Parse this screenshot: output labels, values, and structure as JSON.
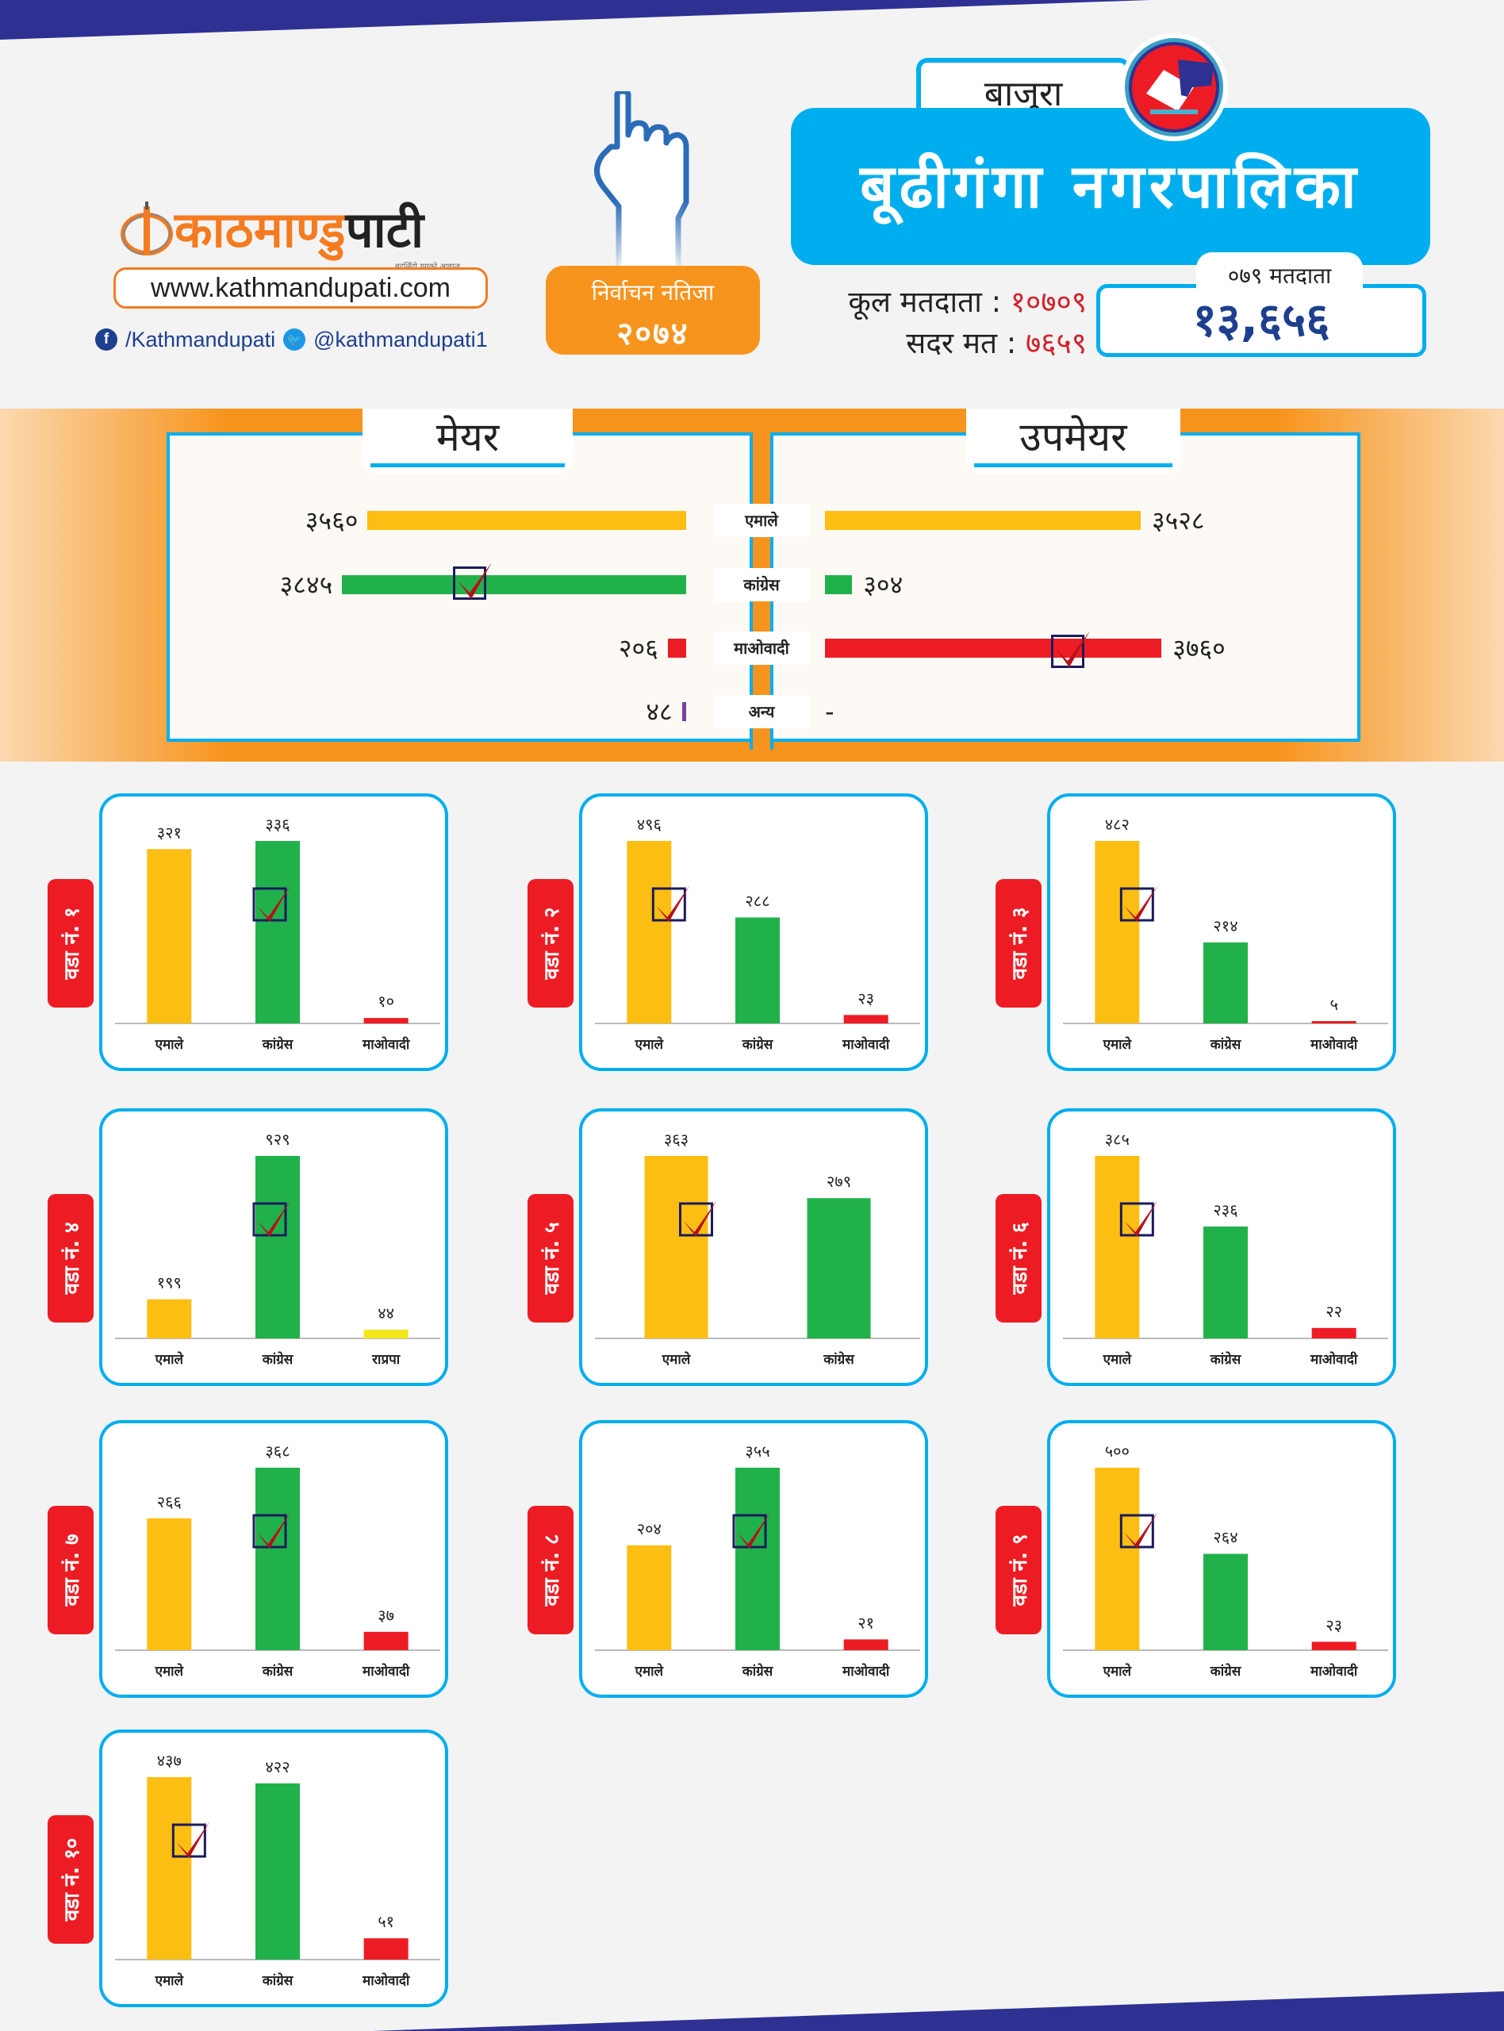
{
  "brand": {
    "logo_orange": "काठमाण्डु",
    "logo_dark": "पाटी",
    "tagline": "बदलिँदो युगको आवाज",
    "website": "www.kathmandupati.com",
    "facebook": "/Kathmandupati",
    "twitter": "@kathmandupati1"
  },
  "badge": {
    "line1": "निर्वाचन नतिजा",
    "line2": "२०७४"
  },
  "header": {
    "district": "बाजुरा",
    "municipality": "बूढीगंगा नगरपालिका",
    "total_voters_label": "कूल मतदाता :",
    "total_voters_value": "१०७०९",
    "valid_votes_label": "सदर मत :",
    "valid_votes_value": "७६५९",
    "voters_079_label": "०७९ मतदाता",
    "voters_079_value": "१३,६५६"
  },
  "colors": {
    "emale": "#fdbe13",
    "congress": "#21b14b",
    "maoist": "#ed1c24",
    "others": "#7b3fa0",
    "rpp": "#f5e61a",
    "accent_blue": "#00aeef",
    "accent_orange": "#f7941d",
    "navy": "#2e3192"
  },
  "chart_data": [
    {
      "type": "bar",
      "orientation": "horizontal",
      "title": "मेयर",
      "categories": [
        "एमाले",
        "कांग्रेस",
        "माओवादी",
        "अन्य"
      ],
      "values": [
        3560,
        3845,
        206,
        48
      ],
      "labels": [
        "३५६०",
        "३८४५",
        "२०६",
        "४८"
      ],
      "winner": "कांग्रेस"
    },
    {
      "type": "bar",
      "orientation": "horizontal",
      "title": "उपमेयर",
      "categories": [
        "एमाले",
        "कांग्रेस",
        "माओवादी",
        "अन्य"
      ],
      "values": [
        3528,
        304,
        3760,
        null
      ],
      "labels": [
        "३५२८",
        "३०४",
        "३७६०",
        "-"
      ],
      "winner": "माओवादी"
    },
    {
      "type": "bar",
      "title": "वडा नं. १",
      "categories": [
        "एमाले",
        "कांग्रेस",
        "माओवादी"
      ],
      "values": [
        321,
        336,
        10
      ],
      "labels": [
        "३२१",
        "३३६",
        "१०"
      ],
      "winner": "कांग्रेस"
    },
    {
      "type": "bar",
      "title": "वडा नं. २",
      "categories": [
        "एमाले",
        "कांग्रेस",
        "माओवादी"
      ],
      "values": [
        496,
        288,
        23
      ],
      "labels": [
        "४९६",
        "२८८",
        "२३"
      ],
      "winner": "एमाले"
    },
    {
      "type": "bar",
      "title": "वडा नं. ३",
      "categories": [
        "एमाले",
        "कांग्रेस",
        "माओवादी"
      ],
      "values": [
        482,
        214,
        5
      ],
      "labels": [
        "४८२",
        "२१४",
        "५"
      ],
      "winner": "एमाले"
    },
    {
      "type": "bar",
      "title": "वडा नं. ४",
      "categories": [
        "एमाले",
        "कांग्रेस",
        "राप्रपा"
      ],
      "values": [
        199,
        929,
        44
      ],
      "labels": [
        "१९९",
        "९२९",
        "४४"
      ],
      "winner": "कांग्रेस"
    },
    {
      "type": "bar",
      "title": "वडा नं. ५",
      "categories": [
        "एमाले",
        "कांग्रेस"
      ],
      "values": [
        363,
        279
      ],
      "labels": [
        "३६३",
        "२७९"
      ],
      "winner": "एमाले"
    },
    {
      "type": "bar",
      "title": "वडा नं. ६",
      "categories": [
        "एमाले",
        "कांग्रेस",
        "माओवादी"
      ],
      "values": [
        385,
        236,
        22
      ],
      "labels": [
        "३८५",
        "२३६",
        "२२"
      ],
      "winner": "एमाले"
    },
    {
      "type": "bar",
      "title": "वडा नं. ७",
      "categories": [
        "एमाले",
        "कांग्रेस",
        "माओवादी"
      ],
      "values": [
        266,
        368,
        37
      ],
      "labels": [
        "२६६",
        "३६८",
        "३७"
      ],
      "winner": "कांग्रेस"
    },
    {
      "type": "bar",
      "title": "वडा नं. ८",
      "categories": [
        "एमाले",
        "कांग्रेस",
        "माओवादी"
      ],
      "values": [
        204,
        355,
        21
      ],
      "labels": [
        "२०४",
        "३५५",
        "२१"
      ],
      "winner": "कांग्रेस"
    },
    {
      "type": "bar",
      "title": "वडा नं. ९",
      "categories": [
        "एमाले",
        "कांग्रेस",
        "माओवादी"
      ],
      "values": [
        500,
        264,
        23
      ],
      "labels": [
        "५००",
        "२६४",
        "२३"
      ],
      "winner": "एमाले"
    },
    {
      "type": "bar",
      "title": "वडा नं. १०",
      "categories": [
        "एमाले",
        "कांग्रेस",
        "माओवादी"
      ],
      "values": [
        437,
        422,
        51
      ],
      "labels": [
        "४३७",
        "४२२",
        "५१"
      ],
      "winner": "एमाले"
    }
  ]
}
